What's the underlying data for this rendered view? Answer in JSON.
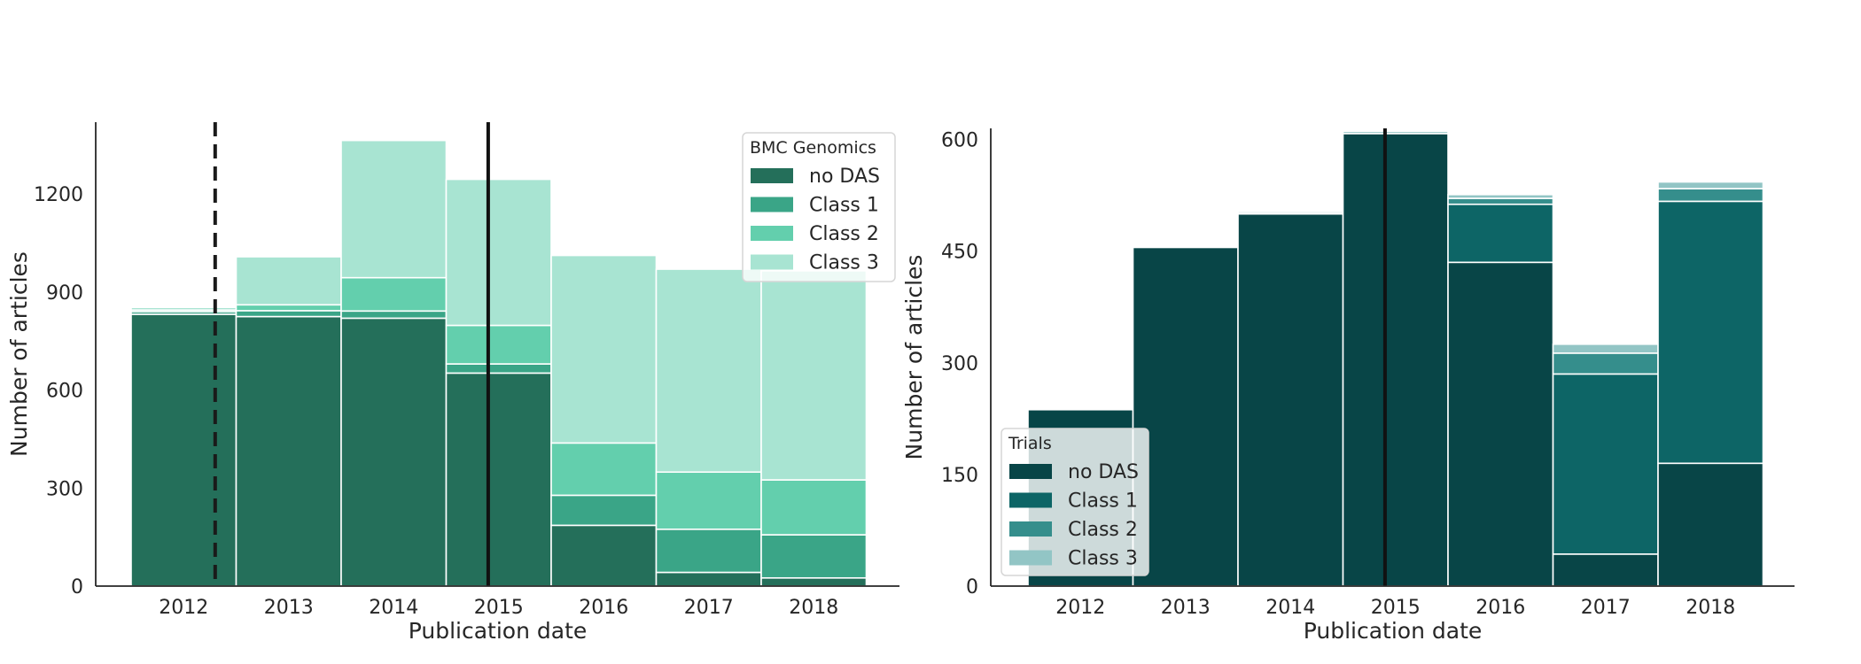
{
  "chart_data": [
    {
      "type": "bar",
      "stacked": true,
      "categories": [
        "2012",
        "2013",
        "2014",
        "2015",
        "2016",
        "2017",
        "2018"
      ],
      "series": [
        {
          "name": "no DAS",
          "color": "#246f5a",
          "values": [
            832,
            825,
            820,
            652,
            186,
            42,
            25
          ]
        },
        {
          "name": "Class 1",
          "color": "#3aa587",
          "values": [
            8,
            18,
            22,
            28,
            92,
            132,
            132
          ]
        },
        {
          "name": "Class 2",
          "color": "#63cfad",
          "values": [
            5,
            18,
            102,
            118,
            160,
            175,
            168
          ]
        },
        {
          "name": "Class 3",
          "color": "#a8e4d2",
          "values": [
            8,
            147,
            420,
            447,
            574,
            621,
            640
          ]
        }
      ],
      "xlabel": "Publication date",
      "ylabel": "Number of articles",
      "ylim": [
        0,
        1420
      ],
      "yticks": [
        0,
        300,
        600,
        900,
        1200
      ],
      "legend": {
        "title": "BMC Genomics",
        "placement": "top-right"
      },
      "vlines": [
        {
          "x": 2012.3,
          "style": "dashed",
          "color": "#1a1a1a"
        },
        {
          "x": 2014.9,
          "style": "solid",
          "color": "#111111"
        }
      ]
    },
    {
      "type": "bar",
      "stacked": true,
      "categories": [
        "2012",
        "2013",
        "2014",
        "2015",
        "2016",
        "2017",
        "2018"
      ],
      "series": [
        {
          "name": "no DAS",
          "color": "#084547",
          "values": [
            237,
            455,
            500,
            608,
            435,
            43,
            165
          ]
        },
        {
          "name": "Class 1",
          "color": "#0d6566",
          "values": [
            0,
            0,
            2,
            0,
            78,
            242,
            352
          ]
        },
        {
          "name": "Class 2",
          "color": "#358e8c",
          "values": [
            0,
            0,
            2,
            0,
            8,
            28,
            17
          ]
        },
        {
          "name": "Class 3",
          "color": "#92c5c5",
          "values": [
            0,
            0,
            0,
            3,
            5,
            12,
            9
          ]
        }
      ],
      "xlabel": "Publication date",
      "ylabel": "Number of articles",
      "ylim": [
        0,
        615
      ],
      "yticks": [
        0,
        150,
        300,
        450,
        600
      ],
      "legend": {
        "title": "Trials",
        "placement": "bottom-left"
      },
      "vlines": [
        {
          "x": 2014.9,
          "style": "solid",
          "color": "#111111"
        }
      ]
    }
  ]
}
